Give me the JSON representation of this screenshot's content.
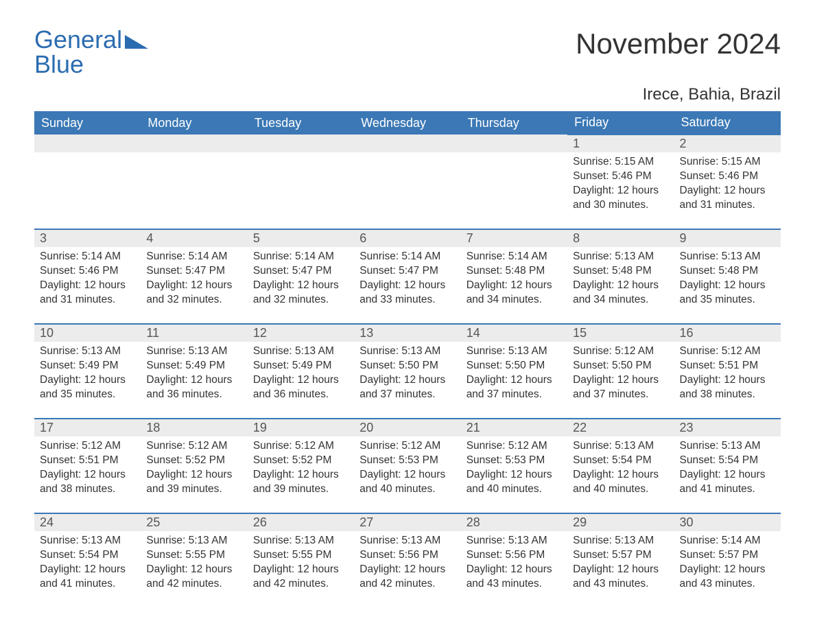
{
  "brand": {
    "name1": "General",
    "name2": "Blue",
    "accent": "#2b6cb0"
  },
  "title": "November 2024",
  "location": "Irece, Bahia, Brazil",
  "colors": {
    "header_bg": "#3b78b5",
    "header_text": "#ffffff",
    "daynum_bg": "#ececec",
    "daynum_text": "#555555",
    "body_text": "#333333",
    "rule": "#3b78b5",
    "page_bg": "#ffffff"
  },
  "days_of_week": [
    "Sunday",
    "Monday",
    "Tuesday",
    "Wednesday",
    "Thursday",
    "Friday",
    "Saturday"
  ],
  "weeks": [
    [
      null,
      null,
      null,
      null,
      null,
      {
        "n": "1",
        "sunrise": "5:15 AM",
        "sunset": "5:46 PM",
        "daylight": "12 hours and 30 minutes."
      },
      {
        "n": "2",
        "sunrise": "5:15 AM",
        "sunset": "5:46 PM",
        "daylight": "12 hours and 31 minutes."
      }
    ],
    [
      {
        "n": "3",
        "sunrise": "5:14 AM",
        "sunset": "5:46 PM",
        "daylight": "12 hours and 31 minutes."
      },
      {
        "n": "4",
        "sunrise": "5:14 AM",
        "sunset": "5:47 PM",
        "daylight": "12 hours and 32 minutes."
      },
      {
        "n": "5",
        "sunrise": "5:14 AM",
        "sunset": "5:47 PM",
        "daylight": "12 hours and 32 minutes."
      },
      {
        "n": "6",
        "sunrise": "5:14 AM",
        "sunset": "5:47 PM",
        "daylight": "12 hours and 33 minutes."
      },
      {
        "n": "7",
        "sunrise": "5:14 AM",
        "sunset": "5:48 PM",
        "daylight": "12 hours and 34 minutes."
      },
      {
        "n": "8",
        "sunrise": "5:13 AM",
        "sunset": "5:48 PM",
        "daylight": "12 hours and 34 minutes."
      },
      {
        "n": "9",
        "sunrise": "5:13 AM",
        "sunset": "5:48 PM",
        "daylight": "12 hours and 35 minutes."
      }
    ],
    [
      {
        "n": "10",
        "sunrise": "5:13 AM",
        "sunset": "5:49 PM",
        "daylight": "12 hours and 35 minutes."
      },
      {
        "n": "11",
        "sunrise": "5:13 AM",
        "sunset": "5:49 PM",
        "daylight": "12 hours and 36 minutes."
      },
      {
        "n": "12",
        "sunrise": "5:13 AM",
        "sunset": "5:49 PM",
        "daylight": "12 hours and 36 minutes."
      },
      {
        "n": "13",
        "sunrise": "5:13 AM",
        "sunset": "5:50 PM",
        "daylight": "12 hours and 37 minutes."
      },
      {
        "n": "14",
        "sunrise": "5:13 AM",
        "sunset": "5:50 PM",
        "daylight": "12 hours and 37 minutes."
      },
      {
        "n": "15",
        "sunrise": "5:12 AM",
        "sunset": "5:50 PM",
        "daylight": "12 hours and 37 minutes."
      },
      {
        "n": "16",
        "sunrise": "5:12 AM",
        "sunset": "5:51 PM",
        "daylight": "12 hours and 38 minutes."
      }
    ],
    [
      {
        "n": "17",
        "sunrise": "5:12 AM",
        "sunset": "5:51 PM",
        "daylight": "12 hours and 38 minutes."
      },
      {
        "n": "18",
        "sunrise": "5:12 AM",
        "sunset": "5:52 PM",
        "daylight": "12 hours and 39 minutes."
      },
      {
        "n": "19",
        "sunrise": "5:12 AM",
        "sunset": "5:52 PM",
        "daylight": "12 hours and 39 minutes."
      },
      {
        "n": "20",
        "sunrise": "5:12 AM",
        "sunset": "5:53 PM",
        "daylight": "12 hours and 40 minutes."
      },
      {
        "n": "21",
        "sunrise": "5:12 AM",
        "sunset": "5:53 PM",
        "daylight": "12 hours and 40 minutes."
      },
      {
        "n": "22",
        "sunrise": "5:13 AM",
        "sunset": "5:54 PM",
        "daylight": "12 hours and 40 minutes."
      },
      {
        "n": "23",
        "sunrise": "5:13 AM",
        "sunset": "5:54 PM",
        "daylight": "12 hours and 41 minutes."
      }
    ],
    [
      {
        "n": "24",
        "sunrise": "5:13 AM",
        "sunset": "5:54 PM",
        "daylight": "12 hours and 41 minutes."
      },
      {
        "n": "25",
        "sunrise": "5:13 AM",
        "sunset": "5:55 PM",
        "daylight": "12 hours and 42 minutes."
      },
      {
        "n": "26",
        "sunrise": "5:13 AM",
        "sunset": "5:55 PM",
        "daylight": "12 hours and 42 minutes."
      },
      {
        "n": "27",
        "sunrise": "5:13 AM",
        "sunset": "5:56 PM",
        "daylight": "12 hours and 42 minutes."
      },
      {
        "n": "28",
        "sunrise": "5:13 AM",
        "sunset": "5:56 PM",
        "daylight": "12 hours and 43 minutes."
      },
      {
        "n": "29",
        "sunrise": "5:13 AM",
        "sunset": "5:57 PM",
        "daylight": "12 hours and 43 minutes."
      },
      {
        "n": "30",
        "sunrise": "5:14 AM",
        "sunset": "5:57 PM",
        "daylight": "12 hours and 43 minutes."
      }
    ]
  ],
  "labels": {
    "sunrise": "Sunrise: ",
    "sunset": "Sunset: ",
    "daylight": "Daylight: "
  }
}
